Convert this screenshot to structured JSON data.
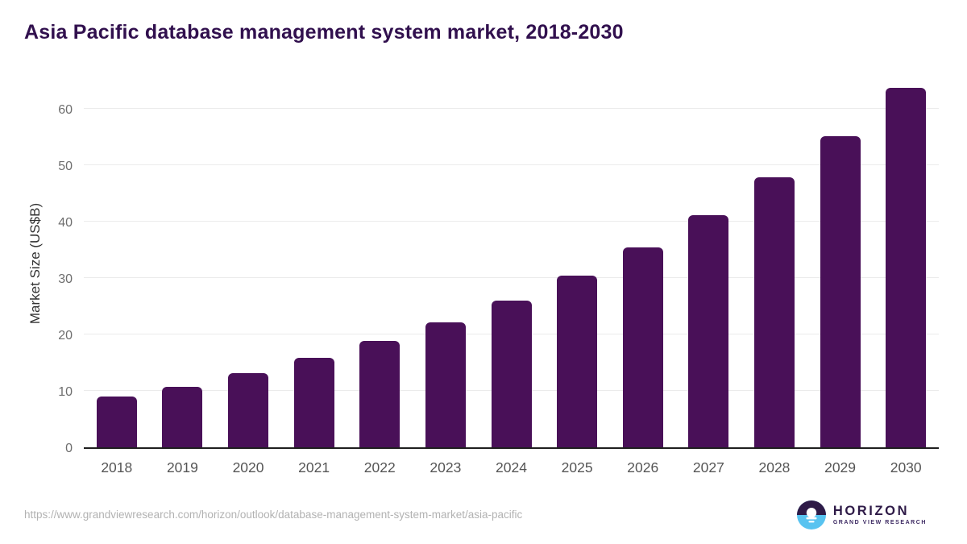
{
  "chart_data": {
    "type": "bar",
    "title": "Asia Pacific database management system market, 2018-2030",
    "categories": [
      "2018",
      "2019",
      "2020",
      "2021",
      "2022",
      "2023",
      "2024",
      "2025",
      "2026",
      "2027",
      "2028",
      "2029",
      "2030"
    ],
    "values": [
      9.0,
      10.7,
      13.1,
      15.9,
      18.8,
      22.2,
      26.0,
      30.4,
      35.5,
      41.2,
      47.8,
      55.2,
      63.7
    ],
    "xlabel": "",
    "ylabel": "Market Size (US$B)",
    "yticks": [
      0,
      10,
      20,
      30,
      40,
      50,
      60
    ],
    "ylim": [
      0,
      65.7
    ],
    "grid": true,
    "legend": "none",
    "bar_color": "#491058",
    "title_color": "#31104e"
  },
  "footer": {
    "url": "https://www.grandviewresearch.com/horizon/outlook/database-management-system-market/asia-pacific"
  },
  "logo": {
    "name": "HORIZON",
    "subtitle": "GRAND VIEW RESEARCH",
    "icon": "horizon-sun-over-water-icon",
    "purple": "#2e1a47",
    "blue": "#58c3f0"
  }
}
